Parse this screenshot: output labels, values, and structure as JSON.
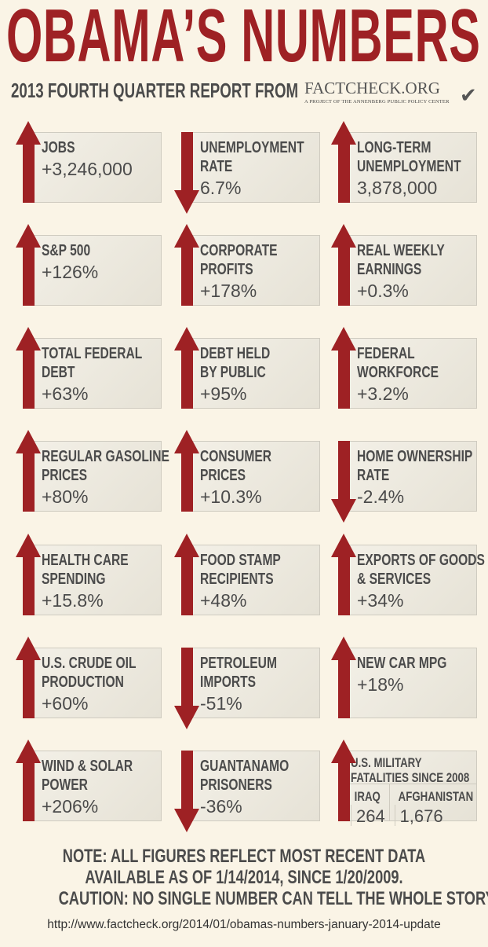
{
  "title": "OBAMA’S NUMBERS",
  "subtitle": "2013 FOURTH QUARTER REPORT FROM",
  "logo": {
    "name": "FactCheck.org",
    "tagline": "A Project of the Annenberg Public Policy Center"
  },
  "colors": {
    "accent": "#9e2124",
    "background": "#faf4e6",
    "text": "#4b4b4b"
  },
  "items": [
    {
      "label": "JOBS",
      "value": "+3,246,000",
      "direction": "up"
    },
    {
      "label": "UNEMPLOYMENT\nRATE",
      "value": "6.7%",
      "direction": "down"
    },
    {
      "label": "LONG-TERM\nUNEMPLOYMENT",
      "value": "3,878,000",
      "direction": "up"
    },
    {
      "label": "S&P 500",
      "value": "+126%",
      "direction": "up"
    },
    {
      "label": "CORPORATE\nPROFITS",
      "value": "+178%",
      "direction": "up"
    },
    {
      "label": "REAL WEEKLY\nEARNINGS",
      "value": "+0.3%",
      "direction": "up"
    },
    {
      "label": "TOTAL FEDERAL\nDEBT",
      "value": "+63%",
      "direction": "up"
    },
    {
      "label": "DEBT HELD\nBY PUBLIC",
      "value": "+95%",
      "direction": "up"
    },
    {
      "label": "FEDERAL\nWORKFORCE",
      "value": "+3.2%",
      "direction": "up"
    },
    {
      "label": "REGULAR GASOLINE\nPRICES",
      "value": "+80%",
      "direction": "up"
    },
    {
      "label": "CONSUMER\nPRICES",
      "value": "+10.3%",
      "direction": "up"
    },
    {
      "label": "HOME OWNERSHIP\nRATE",
      "value": "-2.4%",
      "direction": "down"
    },
    {
      "label": "HEALTH CARE\nSPENDING",
      "value": "+15.8%",
      "direction": "up"
    },
    {
      "label": "FOOD STAMP\nRECIPIENTS",
      "value": "+48%",
      "direction": "up"
    },
    {
      "label": "EXPORTS OF GOODS\n& SERVICES",
      "value": "+34%",
      "direction": "up"
    },
    {
      "label": "U.S. CRUDE OIL\nPRODUCTION",
      "value": "+60%",
      "direction": "up"
    },
    {
      "label": "PETROLEUM\nIMPORTS",
      "value": "-51%",
      "direction": "down"
    },
    {
      "label": "NEW CAR MPG",
      "value": "+18%",
      "direction": "up"
    },
    {
      "label": "WIND & SOLAR\nPOWER",
      "value": "+206%",
      "direction": "up"
    },
    {
      "label": "GUANTANAMO\nPRISONERS",
      "value": "-36%",
      "direction": "down"
    }
  ],
  "military": {
    "label": "U.S. MILITARY\nFATALITIES SINCE 2008",
    "direction": "up",
    "iraq_label": "IRAQ",
    "iraq_value": "264",
    "afghanistan_label": "AFGHANISTAN",
    "afghanistan_value": "1,676"
  },
  "note": [
    "NOTE:  ALL FIGURES REFLECT MOST RECENT DATA",
    "AVAILABLE AS OF 1/14/2014, SINCE 1/20/2009.",
    "CAUTION: NO SINGLE NUMBER CAN TELL THE WHOLE STORY"
  ],
  "url": "http://www.factcheck.org/2014/01/obamas-numbers-january-2014-update"
}
